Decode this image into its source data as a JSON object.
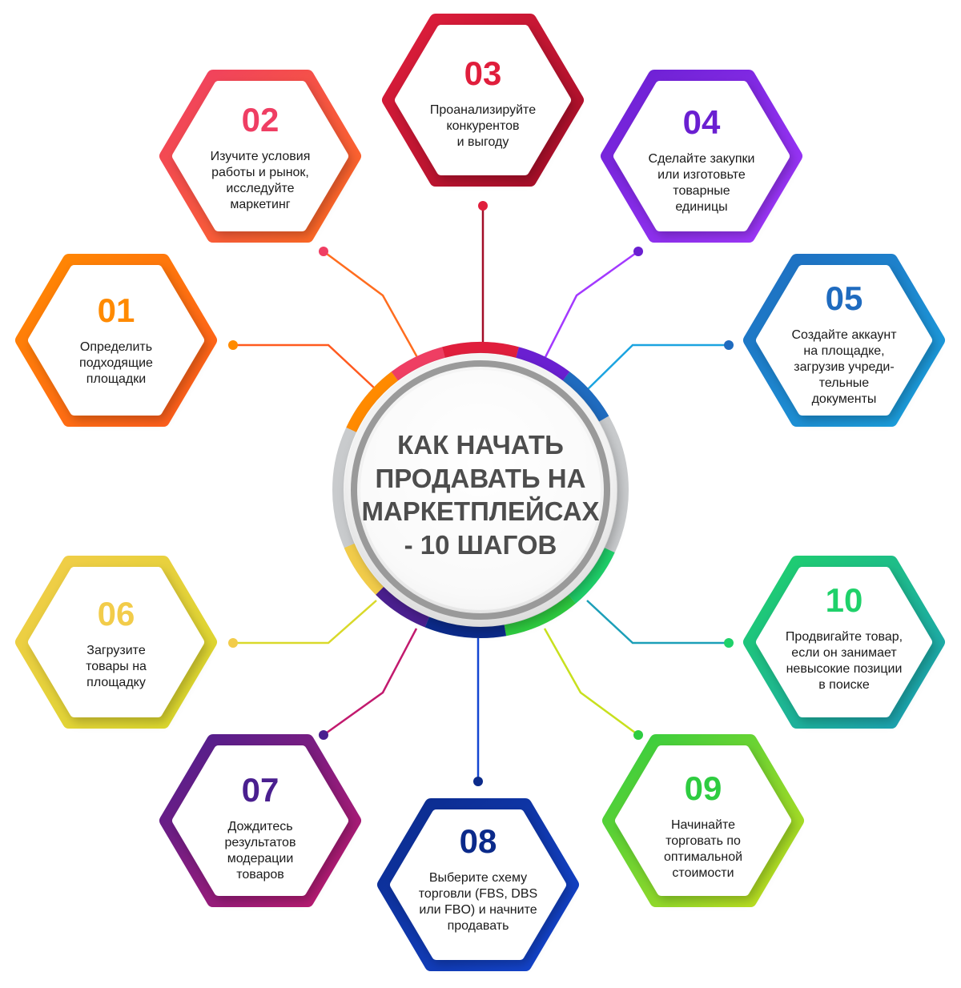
{
  "title": {
    "lines": [
      "КАК НАЧАТЬ",
      "ПРОДАВАТЬ НА",
      "МАРКЕТПЛЕЙСАХ",
      "- 10 ШАГОВ"
    ]
  },
  "steps": [
    {
      "number": "01",
      "lines": [
        "Определить",
        "подходящие",
        "площадки"
      ],
      "color_a": "#ff8a00",
      "color_b": "#ff5a1f"
    },
    {
      "number": "02",
      "lines": [
        "Изучите условия",
        "работы и рынок,",
        "исследуйте",
        "маркетинг"
      ],
      "color_a": "#ef3e63",
      "color_b": "#ff6d1f"
    },
    {
      "number": "03",
      "lines": [
        "Проанализируйте",
        "конкурентов",
        "и выгоду"
      ],
      "color_a": "#e01e3c",
      "color_b": "#a30d27"
    },
    {
      "number": "04",
      "lines": [
        "Сделайте закупки",
        "или изготовьте",
        "товарные",
        "единицы"
      ],
      "color_a": "#6a1fd1",
      "color_b": "#a339ff"
    },
    {
      "number": "05",
      "lines": [
        "Создайте аккаунт",
        "на площадке,",
        "загрузив учреди-",
        "тельные",
        "документы"
      ],
      "color_a": "#1f6bbf",
      "color_b": "#1ba4e0"
    },
    {
      "number": "06",
      "lines": [
        "Загрузите",
        "товары на",
        "площадку"
      ],
      "color_a": "#f2cc4a",
      "color_b": "#d9d92a"
    },
    {
      "number": "07",
      "lines": [
        "Дождитесь",
        "результатов",
        "модерации",
        "товаров"
      ],
      "color_a": "#4a1f8f",
      "color_b": "#c21a6e"
    },
    {
      "number": "08",
      "lines": [
        "Выберите схему",
        "торговли (FBS, DBS",
        "или FBO) и начните",
        "продавать"
      ],
      "color_a": "#0b2a8a",
      "color_b": "#1446d1"
    },
    {
      "number": "09",
      "lines": [
        "Начинайте",
        "торговать по",
        "оптимальной",
        "стоимости"
      ],
      "color_a": "#2ecc40",
      "color_b": "#c8e01e"
    },
    {
      "number": "10",
      "lines": [
        "Продвигайте товар,",
        "если он занимает",
        "невысокие позиции",
        "в поиске"
      ],
      "color_a": "#1fd16a",
      "color_b": "#1c9fb8"
    }
  ]
}
